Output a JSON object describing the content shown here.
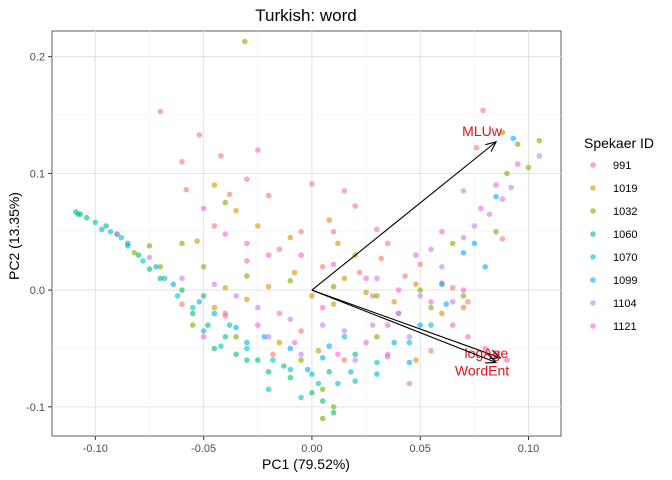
{
  "chart_data": {
    "type": "scatter",
    "title": "Turkish: word",
    "xlabel": "PC1 (79.52%)",
    "ylabel": "PC2 (13.35%)",
    "xlim": [
      -0.12,
      0.115
    ],
    "ylim": [
      -0.125,
      0.222
    ],
    "x_ticks": [
      -0.1,
      -0.05,
      0.0,
      0.05,
      0.1
    ],
    "x_tick_labels": [
      "-0.10",
      "-0.05",
      "0.00",
      "0.05",
      "0.10"
    ],
    "y_ticks": [
      -0.1,
      0.0,
      0.1,
      0.2
    ],
    "y_tick_labels": [
      "-0.1",
      "0.0",
      "0.1",
      "0.2"
    ],
    "grid": true,
    "legend": {
      "title": "Spekaer ID",
      "placement": "right",
      "entries": [
        {
          "label": "991",
          "color": "#F8766D"
        },
        {
          "label": "1019",
          "color": "#CD9600"
        },
        {
          "label": "1032",
          "color": "#7CAE00"
        },
        {
          "label": "1060",
          "color": "#00BE67"
        },
        {
          "label": "1070",
          "color": "#00BFC4"
        },
        {
          "label": "1099",
          "color": "#00A9FF"
        },
        {
          "label": "1104",
          "color": "#C77CFF"
        },
        {
          "label": "1121",
          "color": "#FF61CC"
        }
      ]
    },
    "vectors": [
      {
        "label": "MLUw",
        "x": 0.085,
        "y": 0.127
      },
      {
        "label": "logAge",
        "x": 0.087,
        "y": -0.058
      },
      {
        "label": "WordEnt",
        "x": 0.085,
        "y": -0.062
      }
    ],
    "series": [
      {
        "name": "991",
        "points": [
          [
            -0.07,
            0.153
          ],
          [
            -0.052,
            0.133
          ],
          [
            -0.042,
            0.115
          ],
          [
            -0.06,
            0.11
          ],
          [
            -0.058,
            0.086
          ],
          [
            -0.038,
            0.082
          ],
          [
            -0.02,
            0.081
          ],
          [
            0.0,
            0.091
          ],
          [
            -0.005,
            0.05
          ],
          [
            0.01,
            0.05
          ],
          [
            0.015,
            0.085
          ],
          [
            0.02,
            0.072
          ],
          [
            0.03,
            0.052
          ],
          [
            0.035,
            0.04
          ],
          [
            0.032,
            0.027
          ],
          [
            0.043,
            0.012
          ],
          [
            -0.045,
            0.055
          ],
          [
            -0.03,
            0.025
          ],
          [
            -0.015,
            0.035
          ],
          [
            0.005,
            0.02
          ],
          [
            0.022,
            0.015
          ],
          [
            0.05,
            0.022
          ],
          [
            0.06,
            0.006
          ],
          [
            0.072,
            -0.01
          ],
          [
            0.079,
            0.154
          ],
          [
            0.076,
            0.122
          ],
          [
            0.088,
            0.044
          ],
          [
            0.04,
            -0.02
          ],
          [
            0.035,
            -0.057
          ],
          [
            -0.005,
            -0.035
          ],
          [
            -0.018,
            -0.055
          ],
          [
            0.015,
            -0.06
          ],
          [
            0.045,
            -0.08
          ],
          [
            0.055,
            -0.052
          ],
          [
            -0.06,
            -0.012
          ],
          [
            -0.04,
            -0.02
          ],
          [
            0.065,
            0.002
          ],
          [
            0.028,
            -0.005
          ]
        ]
      },
      {
        "name": "1019",
        "points": [
          [
            -0.045,
            0.09
          ],
          [
            -0.035,
            0.068
          ],
          [
            -0.025,
            0.055
          ],
          [
            -0.01,
            0.045
          ],
          [
            0.008,
            0.06
          ],
          [
            0.012,
            0.04
          ],
          [
            0.02,
            0.03
          ],
          [
            -0.04,
            0.002
          ],
          [
            -0.03,
            -0.008
          ],
          [
            -0.02,
            0.003
          ],
          [
            0.0,
            -0.005
          ],
          [
            0.01,
            -0.012
          ],
          [
            0.025,
            -0.002
          ],
          [
            0.048,
            0.005
          ],
          [
            0.06,
            -0.02
          ],
          [
            0.07,
            -0.015
          ],
          [
            0.048,
            -0.06
          ],
          [
            0.003,
            -0.052
          ],
          [
            -0.015,
            -0.045
          ],
          [
            -0.053,
            0.042
          ],
          [
            -0.045,
            -0.015
          ],
          [
            0.038,
            -0.01
          ],
          [
            0.015,
            0.01
          ],
          [
            -0.008,
            0.015
          ]
        ]
      },
      {
        "name": "1032",
        "points": [
          [
            -0.031,
            0.213
          ],
          [
            -0.04,
            0.075
          ],
          [
            -0.06,
            0.04
          ],
          [
            -0.075,
            0.038
          ],
          [
            -0.082,
            0.032
          ],
          [
            -0.07,
            0.02
          ],
          [
            -0.05,
            0.02
          ],
          [
            -0.03,
            0.012
          ],
          [
            -0.01,
            0.008
          ],
          [
            0.01,
            0.003
          ],
          [
            0.03,
            -0.005
          ],
          [
            0.055,
            -0.015
          ],
          [
            0.07,
            -0.005
          ],
          [
            0.085,
            0.05
          ],
          [
            0.09,
            0.1
          ],
          [
            0.095,
            0.125
          ],
          [
            0.105,
            0.128
          ],
          [
            0.1,
            0.105
          ],
          [
            0.088,
            0.135
          ],
          [
            0.065,
            0.04
          ],
          [
            0.05,
            0.0
          ],
          [
            -0.005,
            -0.06
          ],
          [
            0.005,
            -0.085
          ],
          [
            0.01,
            -0.1
          ],
          [
            0.005,
            -0.11
          ],
          [
            -0.035,
            -0.04
          ],
          [
            -0.055,
            -0.03
          ],
          [
            0.03,
            -0.04
          ]
        ]
      },
      {
        "name": "1060",
        "points": [
          [
            -0.109,
            0.067
          ],
          [
            -0.107,
            0.065
          ],
          [
            -0.104,
            0.062
          ],
          [
            -0.095,
            0.055
          ],
          [
            -0.09,
            0.048
          ],
          [
            -0.085,
            0.04
          ],
          [
            -0.08,
            0.03
          ],
          [
            -0.075,
            0.018
          ],
          [
            -0.07,
            0.01
          ],
          [
            -0.06,
            0.0
          ],
          [
            -0.055,
            -0.02
          ],
          [
            -0.048,
            -0.03
          ],
          [
            -0.04,
            -0.04
          ],
          [
            -0.035,
            -0.055
          ],
          [
            -0.03,
            -0.06
          ],
          [
            -0.02,
            -0.07
          ],
          [
            -0.01,
            -0.075
          ],
          [
            0.0,
            -0.088
          ],
          [
            0.005,
            -0.095
          ],
          [
            0.01,
            -0.105
          ],
          [
            -0.013,
            -0.065
          ],
          [
            -0.025,
            -0.06
          ],
          [
            0.02,
            -0.055
          ],
          [
            0.008,
            -0.07
          ],
          [
            -0.045,
            -0.05
          ],
          [
            -0.05,
            -0.005
          ]
        ]
      },
      {
        "name": "1070",
        "points": [
          [
            -0.108,
            0.065
          ],
          [
            -0.1,
            0.058
          ],
          [
            -0.093,
            0.05
          ],
          [
            -0.088,
            0.045
          ],
          [
            -0.078,
            0.025
          ],
          [
            -0.068,
            0.01
          ],
          [
            -0.062,
            -0.005
          ],
          [
            -0.055,
            -0.015
          ],
          [
            -0.05,
            -0.035
          ],
          [
            -0.042,
            -0.048
          ],
          [
            -0.03,
            -0.05
          ],
          [
            -0.018,
            -0.06
          ],
          [
            -0.01,
            -0.068
          ],
          [
            0.0,
            -0.072
          ],
          [
            0.012,
            -0.08
          ],
          [
            0.02,
            -0.078
          ],
          [
            0.03,
            -0.062
          ],
          [
            -0.02,
            -0.085
          ],
          [
            -0.005,
            -0.092
          ],
          [
            0.003,
            -0.08
          ],
          [
            0.045,
            -0.045
          ],
          [
            0.055,
            -0.03
          ],
          [
            -0.038,
            -0.03
          ],
          [
            0.015,
            -0.04
          ]
        ]
      },
      {
        "name": "1099",
        "points": [
          [
            -0.097,
            0.052
          ],
          [
            -0.085,
            0.038
          ],
          [
            -0.072,
            0.02
          ],
          [
            -0.064,
            0.005
          ],
          [
            -0.052,
            -0.01
          ],
          [
            -0.045,
            -0.02
          ],
          [
            -0.035,
            -0.032
          ],
          [
            -0.022,
            -0.04
          ],
          [
            -0.01,
            -0.05
          ],
          [
            0.005,
            -0.058
          ],
          [
            0.018,
            -0.07
          ],
          [
            0.03,
            -0.072
          ],
          [
            0.045,
            -0.062
          ],
          [
            0.06,
            0.005
          ],
          [
            0.075,
            0.04
          ],
          [
            0.085,
            0.08
          ],
          [
            0.093,
            0.13
          ],
          [
            0.07,
            0.032
          ],
          [
            0.08,
            0.02
          ],
          [
            0.062,
            -0.012
          ],
          [
            0.05,
            -0.03
          ],
          [
            0.038,
            -0.045
          ],
          [
            -0.002,
            -0.068
          ],
          [
            -0.03,
            -0.045
          ],
          [
            0.008,
            -0.048
          ]
        ]
      },
      {
        "name": "1104",
        "points": [
          [
            -0.09,
            0.048
          ],
          [
            -0.075,
            0.028
          ],
          [
            -0.06,
            0.01
          ],
          [
            -0.045,
            0.005
          ],
          [
            -0.035,
            -0.005
          ],
          [
            -0.025,
            -0.015
          ],
          [
            -0.01,
            -0.025
          ],
          [
            0.005,
            -0.03
          ],
          [
            0.015,
            -0.035
          ],
          [
            0.028,
            -0.03
          ],
          [
            0.04,
            -0.02
          ],
          [
            0.05,
            -0.005
          ],
          [
            0.06,
            0.02
          ],
          [
            0.07,
            0.045
          ],
          [
            0.075,
            0.055
          ],
          [
            0.082,
            0.065
          ],
          [
            0.088,
            0.078
          ],
          [
            0.092,
            0.088
          ],
          [
            0.105,
            0.115
          ],
          [
            0.07,
            0.085
          ],
          [
            0.055,
            0.035
          ],
          [
            0.045,
            -0.04
          ],
          [
            0.035,
            -0.055
          ],
          [
            0.02,
            -0.06
          ],
          [
            -0.005,
            -0.055
          ],
          [
            -0.02,
            -0.04
          ],
          [
            0.065,
            -0.01
          ],
          [
            0.03,
            0.01
          ]
        ]
      },
      {
        "name": "1121",
        "points": [
          [
            -0.025,
            0.12
          ],
          [
            -0.03,
            0.095
          ],
          [
            -0.05,
            0.07
          ],
          [
            -0.04,
            0.048
          ],
          [
            -0.03,
            0.04
          ],
          [
            -0.02,
            0.03
          ],
          [
            -0.005,
            0.03
          ],
          [
            0.01,
            0.022
          ],
          [
            0.025,
            0.01
          ],
          [
            0.04,
            0.0
          ],
          [
            0.055,
            -0.01
          ],
          [
            0.065,
            -0.03
          ],
          [
            0.072,
            -0.04
          ],
          [
            0.08,
            -0.05
          ],
          [
            0.085,
            -0.055
          ],
          [
            0.09,
            -0.06
          ],
          [
            0.095,
            0.108
          ],
          [
            0.085,
            0.09
          ],
          [
            0.078,
            0.07
          ],
          [
            0.06,
            0.05
          ],
          [
            0.048,
            0.03
          ],
          [
            0.035,
            -0.03
          ],
          [
            0.025,
            -0.045
          ],
          [
            0.012,
            -0.055
          ],
          [
            -0.008,
            -0.045
          ],
          [
            -0.025,
            -0.03
          ],
          [
            -0.04,
            -0.022
          ],
          [
            -0.05,
            -0.04
          ],
          [
            -0.015,
            -0.02
          ],
          [
            0.005,
            -0.015
          ],
          [
            0.07,
            0.0
          ]
        ]
      }
    ]
  }
}
